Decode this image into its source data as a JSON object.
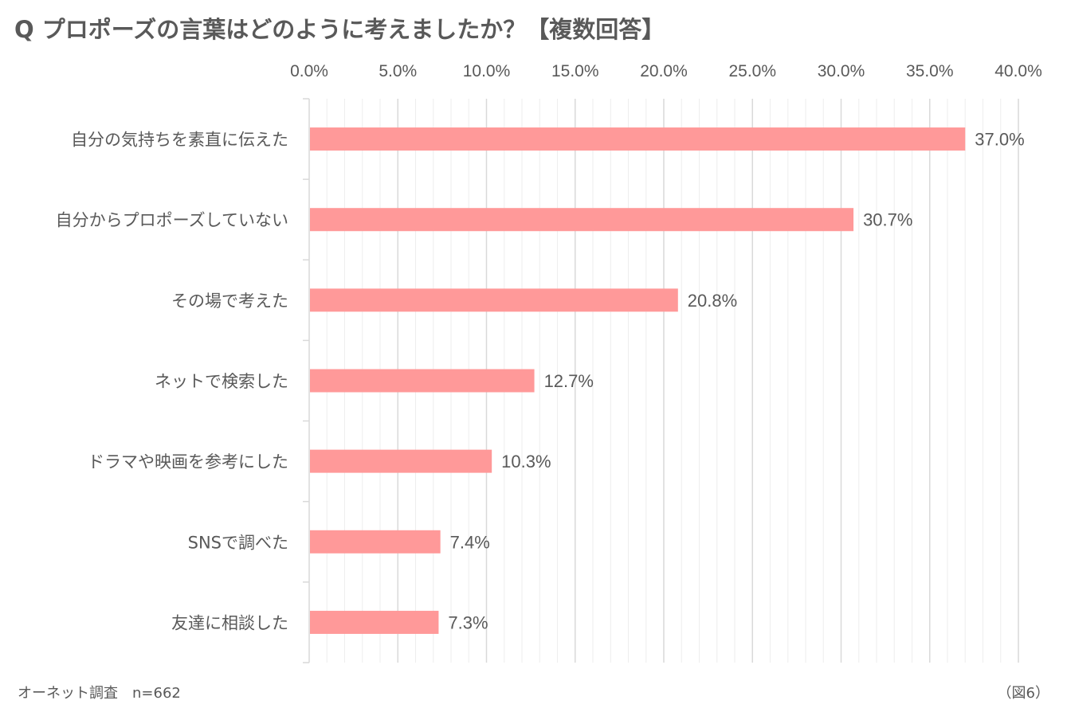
{
  "header": {
    "title": "Q プロポーズの言葉はどのように考えましたか？【複数回答】"
  },
  "footer": {
    "source": "オーネット調査　n=662",
    "figure_label": "（図6）"
  },
  "colors": {
    "bar": "#ff9999",
    "grid_major": "#d9d9d9",
    "grid_minor": "#eeeeee",
    "axis": "#d9d9d9",
    "text": "#595959"
  },
  "chart_data": {
    "type": "bar",
    "orientation": "horizontal",
    "title": "Q プロポーズの言葉はどのように考えましたか？【複数回答】",
    "xlabel": "",
    "ylabel": "",
    "xlim": [
      0,
      40
    ],
    "major_tick_step": 5,
    "minor_tick_step": 1,
    "tick_labels": [
      "0.0%",
      "5.0%",
      "10.0%",
      "15.0%",
      "20.0%",
      "25.0%",
      "30.0%",
      "35.0%",
      "40.0%"
    ],
    "categories": [
      "自分の気持ちを素直に伝えた",
      "自分からプロポーズしていない",
      "その場で考えた",
      "ネットで検索した",
      "ドラマや映画を参考にした",
      "SNSで調べた",
      "友達に相談した"
    ],
    "values": [
      37.0,
      30.7,
      20.8,
      12.7,
      10.3,
      7.4,
      7.3
    ],
    "value_labels": [
      "37.0%",
      "30.7%",
      "20.8%",
      "12.7%",
      "10.3%",
      "7.4%",
      "7.3%"
    ],
    "legend": "none",
    "grid": true
  }
}
